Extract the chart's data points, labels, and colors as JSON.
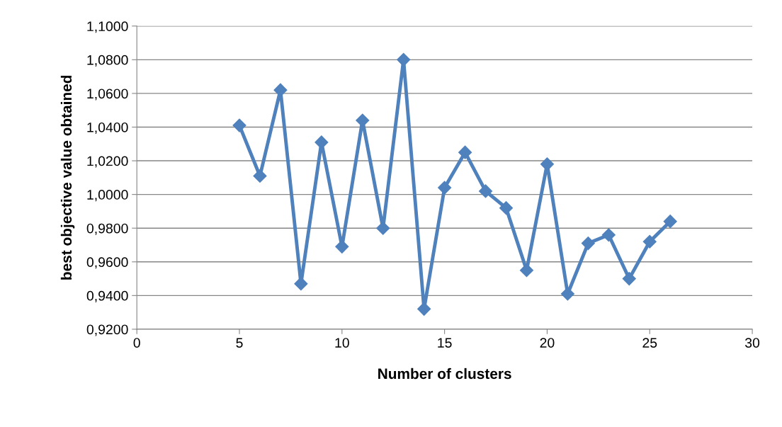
{
  "chart_data": {
    "type": "line",
    "xlabel": "Number of clusters",
    "ylabel": "best objective value obtained",
    "x": [
      5,
      6,
      7,
      8,
      9,
      10,
      11,
      12,
      13,
      14,
      15,
      16,
      17,
      18,
      19,
      20,
      21,
      22,
      23,
      24,
      25,
      26
    ],
    "series": [
      {
        "color": "#4f81bd",
        "values": [
          1.041,
          1.011,
          1.062,
          0.947,
          1.031,
          0.969,
          1.044,
          0.98,
          1.08,
          0.932,
          1.004,
          1.025,
          1.002,
          0.992,
          0.955,
          1.018,
          0.941,
          0.971,
          0.976,
          0.95,
          0.972,
          0.984
        ]
      }
    ],
    "xlim": [
      0,
      30
    ],
    "xticks": [
      0,
      5,
      10,
      15,
      20,
      25,
      30
    ],
    "ylim": [
      0.92,
      1.1
    ],
    "yticks": [
      {
        "value": 0.92,
        "label": "0,9200"
      },
      {
        "value": 0.94,
        "label": "0,9400"
      },
      {
        "value": 0.96,
        "label": "0,9600"
      },
      {
        "value": 0.98,
        "label": "0,9800"
      },
      {
        "value": 1.0,
        "label": "1,0000"
      },
      {
        "value": 1.02,
        "label": "1,0200"
      },
      {
        "value": 1.04,
        "label": "1,0400"
      },
      {
        "value": 1.06,
        "label": "1,0600"
      },
      {
        "value": 1.08,
        "label": "1,0800"
      },
      {
        "value": 1.1,
        "label": "1,1000"
      }
    ],
    "grid": "y",
    "marker": "diamond",
    "line_style": "solid",
    "legend": false
  }
}
